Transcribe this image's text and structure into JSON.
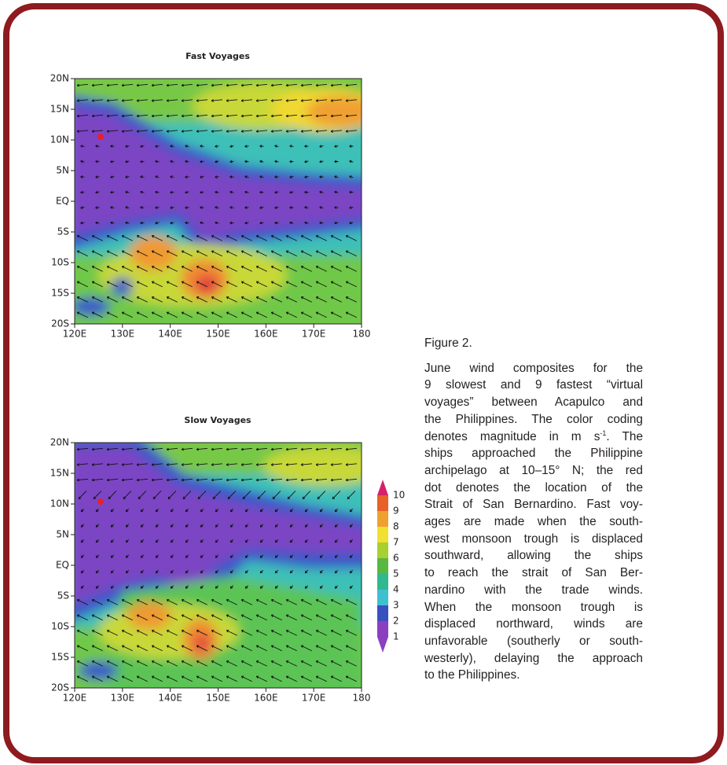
{
  "panels": [
    {
      "title": "Fast Voyages",
      "yticks": [
        "20N",
        "15N",
        "10N",
        "5N",
        "EQ",
        "5S",
        "10S",
        "15S",
        "20S"
      ],
      "xticks": [
        "120E",
        "130E",
        "140E",
        "150E",
        "160E",
        "170E",
        "180"
      ]
    },
    {
      "title": "Slow Voyages",
      "yticks": [
        "20N",
        "15N",
        "10N",
        "5N",
        "EQ",
        "5S",
        "10S",
        "15S",
        "20S"
      ],
      "xticks": [
        "120E",
        "130E",
        "140E",
        "150E",
        "160E",
        "170E",
        "180"
      ]
    }
  ],
  "colorbar": {
    "labels": [
      "10",
      "9",
      "8",
      "7",
      "6",
      "5",
      "4",
      "3",
      "2",
      "1"
    ]
  },
  "caption": {
    "heading": "Figure 2.",
    "lines": [
      "June wind composites for the",
      "9 slowest and 9 fastest “virtual",
      "voyages” between Acapulco and",
      "the Philippines. The color coding",
      [
        "denotes magnitude in m s",
        "-1",
        ". The"
      ],
      "ships approached the Philippine",
      "archipelago at 10–15° N; the red",
      "dot denotes the location of the",
      "Strait of San Bernardino. Fast voy-",
      "ages are made when the south-",
      "west monsoon trough is displaced",
      "southward, allowing the ships",
      "to reach the strait of San Ber-",
      "nardino with the trade winds.",
      "When the monsoon trough is",
      "displaced northward, winds are",
      "unfavorable (southerly or south-",
      "westerly), delaying the approach",
      "to the Philippines."
    ]
  }
}
